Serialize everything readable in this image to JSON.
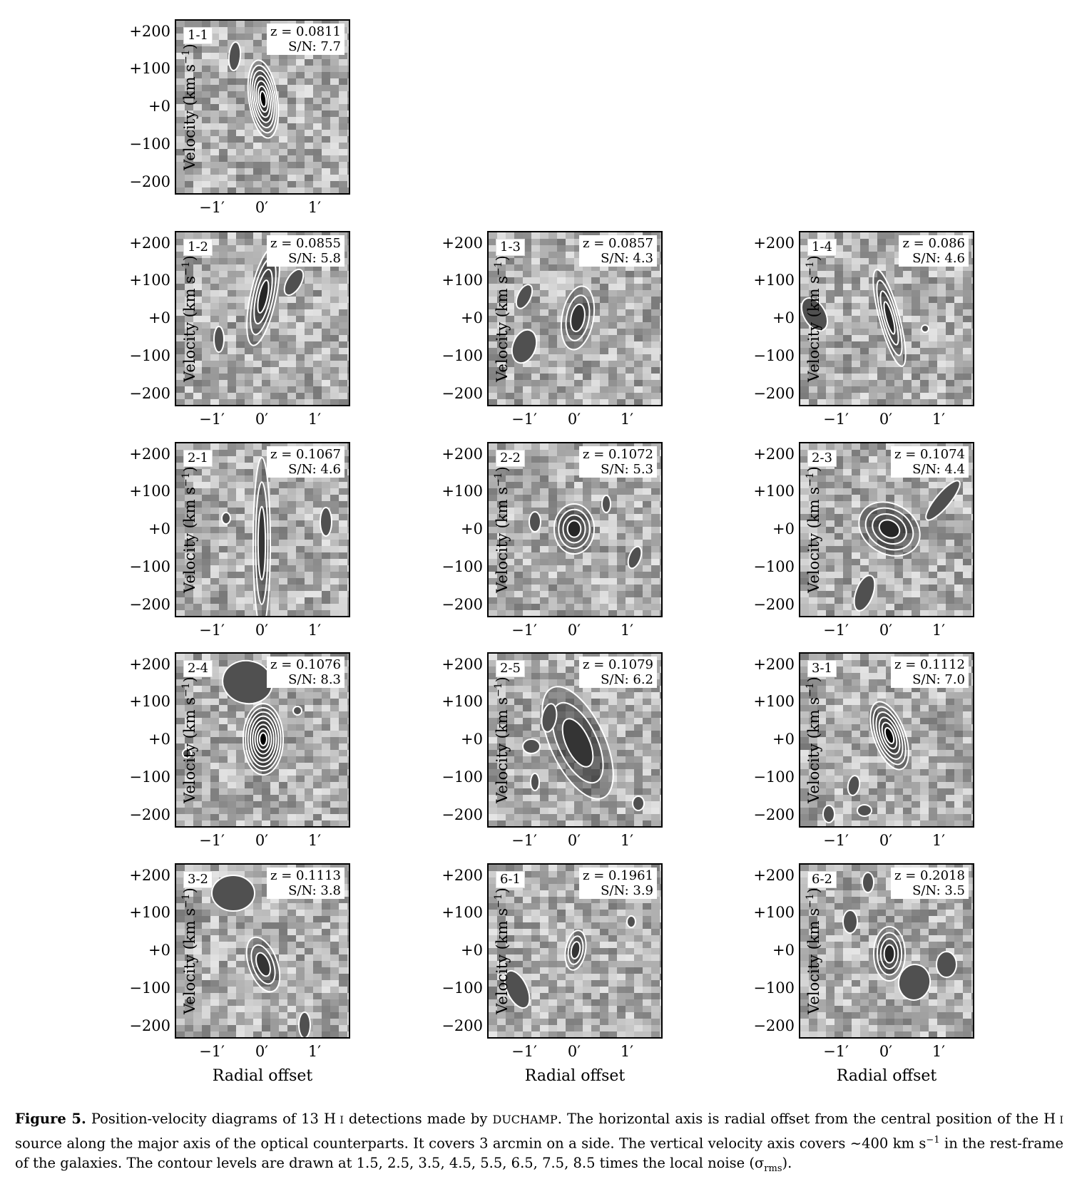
{
  "axes": {
    "y_title": "Velocity (km s",
    "y_title_sup": "−1",
    "y_title_end": ")",
    "y_ticks": [
      "+200",
      "+100",
      "+0",
      "−100",
      "−200"
    ],
    "x_ticks": [
      "−1′",
      "0′",
      "1′"
    ],
    "x_title": "Radial offset"
  },
  "panels": [
    {
      "id": "1-1",
      "z": "z = 0.0811",
      "sn": "S/N: 7.7"
    },
    {
      "id": "1-2",
      "z": "z = 0.0855",
      "sn": "S/N: 5.8"
    },
    {
      "id": "1-3",
      "z": "z = 0.0857",
      "sn": "S/N: 4.3"
    },
    {
      "id": "1-4",
      "z": "z = 0.086",
      "sn": "S/N: 4.6"
    },
    {
      "id": "2-1",
      "z": "z = 0.1067",
      "sn": "S/N: 4.6"
    },
    {
      "id": "2-2",
      "z": "z = 0.1072",
      "sn": "S/N: 5.3"
    },
    {
      "id": "2-3",
      "z": "z = 0.1074",
      "sn": "S/N: 4.4"
    },
    {
      "id": "2-4",
      "z": "z = 0.1076",
      "sn": "S/N: 8.3"
    },
    {
      "id": "2-5",
      "z": "z = 0.1079",
      "sn": "S/N: 6.2"
    },
    {
      "id": "3-1",
      "z": "z = 0.1112",
      "sn": "S/N: 7.0"
    },
    {
      "id": "3-2",
      "z": "z = 0.1113",
      "sn": "S/N: 3.8"
    },
    {
      "id": "6-1",
      "z": "z = 0.1961",
      "sn": "S/N: 3.9"
    },
    {
      "id": "6-2",
      "z": "z = 0.2018",
      "sn": "S/N: 3.5"
    }
  ],
  "caption": {
    "label": "Figure 5.",
    "p1": " Position-velocity diagrams of 13 H",
    "hi1": " I",
    "p2": " detections made by ",
    "duchamp": "DUCHAMP",
    "p3": ". The horizontal axis is radial offset from the central position of the H",
    "hi2": " I",
    "p4": " source along the major axis of the optical counterparts. It covers 3 arcmin on a side. The vertical velocity axis covers ∼400 km s",
    "sup": "−1",
    "p5": " in the rest-frame of the galaxies. The contour levels are drawn at 1.5, 2.5, 3.5, 4.5, 5.5, 6.5, 7.5, 8.5 times the local noise (σ",
    "sub": "rms",
    "p6": ")."
  }
}
